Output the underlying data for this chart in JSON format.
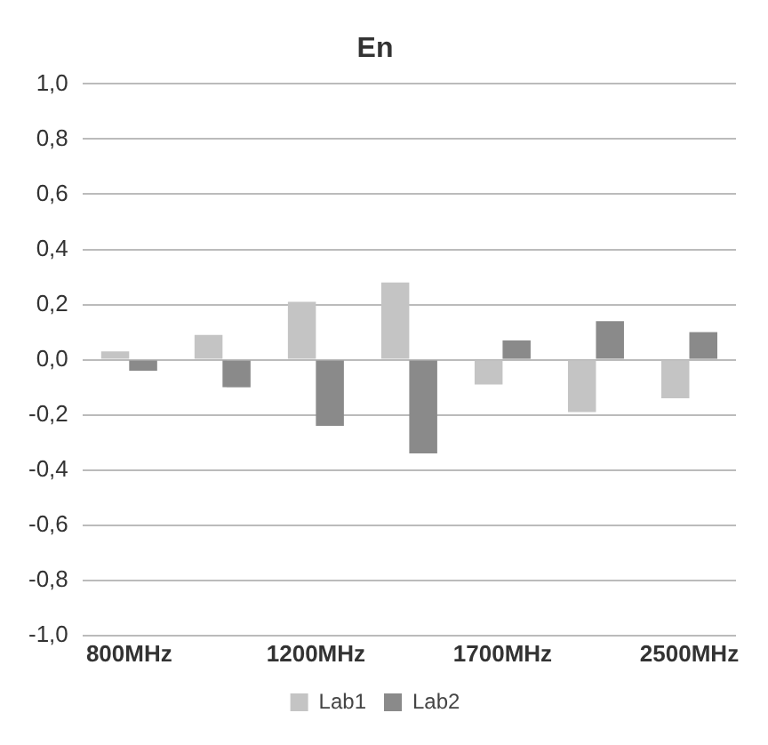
{
  "chart_data": {
    "type": "bar",
    "title": "En",
    "categories": [
      "800MHz",
      null,
      "1200MHz",
      null,
      "1700MHz",
      null,
      "2500MHz"
    ],
    "series": [
      {
        "name": "Lab1",
        "color": "#c4c4c4",
        "values": [
          0.03,
          0.09,
          0.21,
          0.28,
          -0.09,
          -0.19,
          -0.14
        ]
      },
      {
        "name": "Lab2",
        "color": "#8a8a8a",
        "values": [
          -0.04,
          -0.1,
          -0.24,
          -0.34,
          0.07,
          0.14,
          0.1
        ]
      }
    ],
    "ylim": [
      -1,
      1
    ],
    "yticks": [
      {
        "value": -1,
        "label": "-1,0"
      },
      {
        "value": -0.8,
        "label": "-0,8"
      },
      {
        "value": -0.6,
        "label": "-0,6"
      },
      {
        "value": -0.4,
        "label": "-0,4"
      },
      {
        "value": -0.2,
        "label": "-0,2"
      },
      {
        "value": 0,
        "label": "0,0"
      },
      {
        "value": 0.2,
        "label": "0,2"
      },
      {
        "value": 0.4,
        "label": "0,4"
      },
      {
        "value": 0.6,
        "label": "0,6"
      },
      {
        "value": 0.8,
        "label": "0,8"
      },
      {
        "value": 1,
        "label": "1,0"
      }
    ],
    "grid": "y",
    "legend": "bottom"
  }
}
